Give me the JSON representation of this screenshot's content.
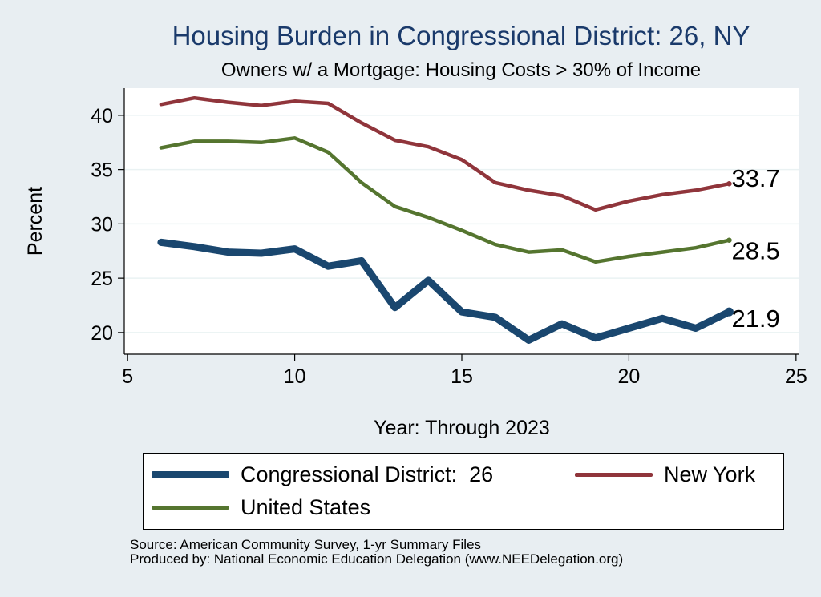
{
  "chart_data": {
    "type": "line",
    "title": "Housing Burden in Congressional District:  26, NY",
    "subtitle": "Owners w/ a Mortgage: Housing Costs > 30% of Income",
    "xlabel": "Year: Through 2023",
    "ylabel": "Percent",
    "xlim": [
      4.9,
      25.1
    ],
    "ylim": [
      18,
      42.5
    ],
    "xticks": [
      5,
      10,
      15,
      20,
      25
    ],
    "yticks": [
      20,
      25,
      30,
      35,
      40
    ],
    "grid": true,
    "legend_position": "bottom",
    "series": [
      {
        "name": "Congressional District:  26",
        "color": "#1a476f",
        "end_label": "21.9",
        "x": [
          6,
          7,
          8,
          9,
          10,
          11,
          12,
          13,
          14,
          15,
          16,
          17,
          18,
          19,
          20,
          21,
          22,
          23
        ],
        "y": [
          28.3,
          27.9,
          27.4,
          27.3,
          27.7,
          26.1,
          26.6,
          22.3,
          24.8,
          21.9,
          21.4,
          19.3,
          20.8,
          19.5,
          20.4,
          21.3,
          20.4,
          21.9
        ]
      },
      {
        "name": "New York",
        "color": "#90353b",
        "end_label": "33.7",
        "x": [
          6,
          7,
          8,
          9,
          10,
          11,
          12,
          13,
          14,
          15,
          16,
          17,
          18,
          19,
          20,
          21,
          22,
          23
        ],
        "y": [
          41.0,
          41.6,
          41.2,
          40.9,
          41.3,
          41.1,
          39.3,
          37.7,
          37.1,
          35.9,
          33.8,
          33.1,
          32.6,
          31.3,
          32.1,
          32.7,
          33.1,
          33.7
        ]
      },
      {
        "name": "United States",
        "color": "#55752f",
        "end_label": "28.5",
        "x": [
          6,
          7,
          8,
          9,
          10,
          11,
          12,
          13,
          14,
          15,
          16,
          17,
          18,
          19,
          20,
          21,
          22,
          23
        ],
        "y": [
          37.0,
          37.6,
          37.6,
          37.5,
          37.9,
          36.6,
          33.8,
          31.6,
          30.6,
          29.4,
          28.1,
          27.4,
          27.6,
          26.5,
          27.0,
          27.4,
          27.8,
          28.5
        ]
      }
    ]
  },
  "legend": {
    "items": [
      {
        "label": "Congressional District:  26"
      },
      {
        "label": "New York"
      },
      {
        "label": "United States"
      }
    ]
  },
  "source": {
    "line1": "Source: American Community Survey, 1-yr Summary Files",
    "line2": "Produced by: National Economic Education Delegation (www.NEEDelegation.org)"
  }
}
